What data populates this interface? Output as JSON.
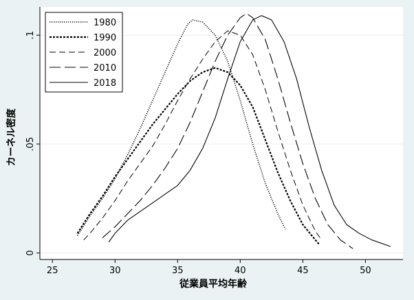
{
  "chart_data": {
    "type": "line",
    "title": "",
    "xlabel": "従業員平均年齢",
    "ylabel": "カーネル密度",
    "xlim": [
      24,
      53
    ],
    "ylim": [
      -0.003,
      0.113
    ],
    "xticks": [
      "25",
      "30",
      "35",
      "40",
      "45",
      "50"
    ],
    "yticks": [
      "0",
      ".05",
      ".1"
    ],
    "yticks_values": [
      0,
      0.05,
      0.1
    ],
    "grid": true,
    "legend_position": "top-left",
    "colors": {
      "plot_bg": "#ffffff",
      "outer_bg": "#eaf2f3",
      "line": "#000000",
      "grid": "#e6eef0"
    },
    "series": [
      {
        "name": "1980",
        "dash": "dotted",
        "points": [
          [
            27.0,
            0.008
          ],
          [
            28.0,
            0.017
          ],
          [
            29.0,
            0.025
          ],
          [
            30.0,
            0.034
          ],
          [
            31.0,
            0.045
          ],
          [
            32.0,
            0.057
          ],
          [
            33.0,
            0.07
          ],
          [
            34.0,
            0.083
          ],
          [
            35.0,
            0.096
          ],
          [
            35.8,
            0.105
          ],
          [
            36.2,
            0.107
          ],
          [
            37.0,
            0.106
          ],
          [
            38.0,
            0.1
          ],
          [
            39.0,
            0.088
          ],
          [
            40.0,
            0.07
          ],
          [
            41.0,
            0.05
          ],
          [
            42.0,
            0.032
          ],
          [
            43.0,
            0.018
          ],
          [
            43.6,
            0.011
          ]
        ]
      },
      {
        "name": "1990",
        "dash": "short-dash",
        "points": [
          [
            27.0,
            0.009
          ],
          [
            28.0,
            0.018
          ],
          [
            29.0,
            0.026
          ],
          [
            30.0,
            0.035
          ],
          [
            31.0,
            0.043
          ],
          [
            32.0,
            0.051
          ],
          [
            33.0,
            0.059
          ],
          [
            34.0,
            0.066
          ],
          [
            35.0,
            0.073
          ],
          [
            36.0,
            0.079
          ],
          [
            37.0,
            0.083
          ],
          [
            38.0,
            0.085
          ],
          [
            39.0,
            0.083
          ],
          [
            40.0,
            0.077
          ],
          [
            41.0,
            0.067
          ],
          [
            42.0,
            0.052
          ],
          [
            43.0,
            0.037
          ],
          [
            44.0,
            0.024
          ],
          [
            45.0,
            0.013
          ],
          [
            46.0,
            0.006
          ],
          [
            46.3,
            0.004
          ]
        ]
      },
      {
        "name": "2000",
        "dash": "dash",
        "points": [
          [
            27.5,
            0.006
          ],
          [
            28.0,
            0.009
          ],
          [
            29.0,
            0.016
          ],
          [
            30.0,
            0.024
          ],
          [
            31.0,
            0.033
          ],
          [
            32.0,
            0.041
          ],
          [
            33.0,
            0.049
          ],
          [
            34.0,
            0.059
          ],
          [
            35.0,
            0.07
          ],
          [
            36.0,
            0.08
          ],
          [
            37.0,
            0.089
          ],
          [
            38.0,
            0.097
          ],
          [
            39.0,
            0.102
          ],
          [
            40.0,
            0.1
          ],
          [
            41.0,
            0.091
          ],
          [
            42.0,
            0.075
          ],
          [
            43.0,
            0.056
          ],
          [
            44.0,
            0.038
          ],
          [
            45.0,
            0.022
          ],
          [
            46.0,
            0.01
          ],
          [
            46.5,
            0.006
          ]
        ]
      },
      {
        "name": "2010",
        "dash": "long-dash",
        "points": [
          [
            29.0,
            0.007
          ],
          [
            30.0,
            0.012
          ],
          [
            31.0,
            0.018
          ],
          [
            32.0,
            0.024
          ],
          [
            33.0,
            0.031
          ],
          [
            34.0,
            0.039
          ],
          [
            35.0,
            0.048
          ],
          [
            36.0,
            0.06
          ],
          [
            37.0,
            0.074
          ],
          [
            38.0,
            0.088
          ],
          [
            39.0,
            0.1
          ],
          [
            40.0,
            0.108
          ],
          [
            40.5,
            0.11
          ],
          [
            41.0,
            0.108
          ],
          [
            42.0,
            0.098
          ],
          [
            43.0,
            0.08
          ],
          [
            44.0,
            0.06
          ],
          [
            45.0,
            0.041
          ],
          [
            46.0,
            0.025
          ],
          [
            47.0,
            0.013
          ],
          [
            48.0,
            0.006
          ],
          [
            49.0,
            0.002
          ]
        ]
      },
      {
        "name": "2018",
        "dash": "solid",
        "points": [
          [
            29.5,
            0.005
          ],
          [
            30.0,
            0.009
          ],
          [
            31.0,
            0.015
          ],
          [
            32.0,
            0.019
          ],
          [
            33.0,
            0.023
          ],
          [
            34.0,
            0.027
          ],
          [
            35.0,
            0.031
          ],
          [
            36.0,
            0.038
          ],
          [
            37.0,
            0.048
          ],
          [
            38.0,
            0.062
          ],
          [
            39.0,
            0.08
          ],
          [
            40.0,
            0.097
          ],
          [
            41.0,
            0.107
          ],
          [
            41.7,
            0.109
          ],
          [
            42.5,
            0.107
          ],
          [
            43.5,
            0.097
          ],
          [
            44.5,
            0.08
          ],
          [
            45.5,
            0.058
          ],
          [
            46.5,
            0.038
          ],
          [
            47.5,
            0.022
          ],
          [
            48.5,
            0.013
          ],
          [
            49.5,
            0.009
          ],
          [
            50.5,
            0.006
          ],
          [
            52.0,
            0.003
          ]
        ]
      }
    ]
  }
}
